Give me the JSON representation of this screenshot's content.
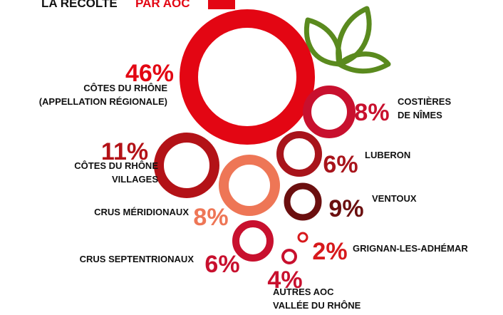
{
  "chart_data": {
    "type": "ring-bubble",
    "title": [
      "LA RÉCOLTE",
      "PAR AOC"
    ],
    "categories": [
      [
        "CÔTES DU RHÔNE",
        "(APPELLATION RÉGIONALE)"
      ],
      [
        "COSTIÈRES",
        "DE NÎMES"
      ],
      [
        "CÔTES DU RHÔNE",
        "VILLAGES"
      ],
      [
        "LUBERON"
      ],
      [
        "CRUS MÉRIDIONAUX"
      ],
      [
        "VENTOUX"
      ],
      [
        "CRUS SEPTENTRIONAUX"
      ],
      [
        "GRIGNAN-LES-ADHÉMAR"
      ],
      [
        "AUTRES AOC",
        "VALLÉE DU RHÔNE"
      ]
    ],
    "values": [
      46,
      8,
      11,
      6,
      8,
      9,
      6,
      2,
      4
    ],
    "value_labels": [
      "46%",
      "8%",
      "11%",
      "6%",
      "8%",
      "9%",
      "6%",
      "2%",
      "4%"
    ],
    "colors": [
      "#e30613",
      "#c8102e",
      "#b31217",
      "#a8141b",
      "#ee7656",
      "#6b0f0f",
      "#c8102e",
      "#d7191c",
      "#c8102e"
    ]
  }
}
